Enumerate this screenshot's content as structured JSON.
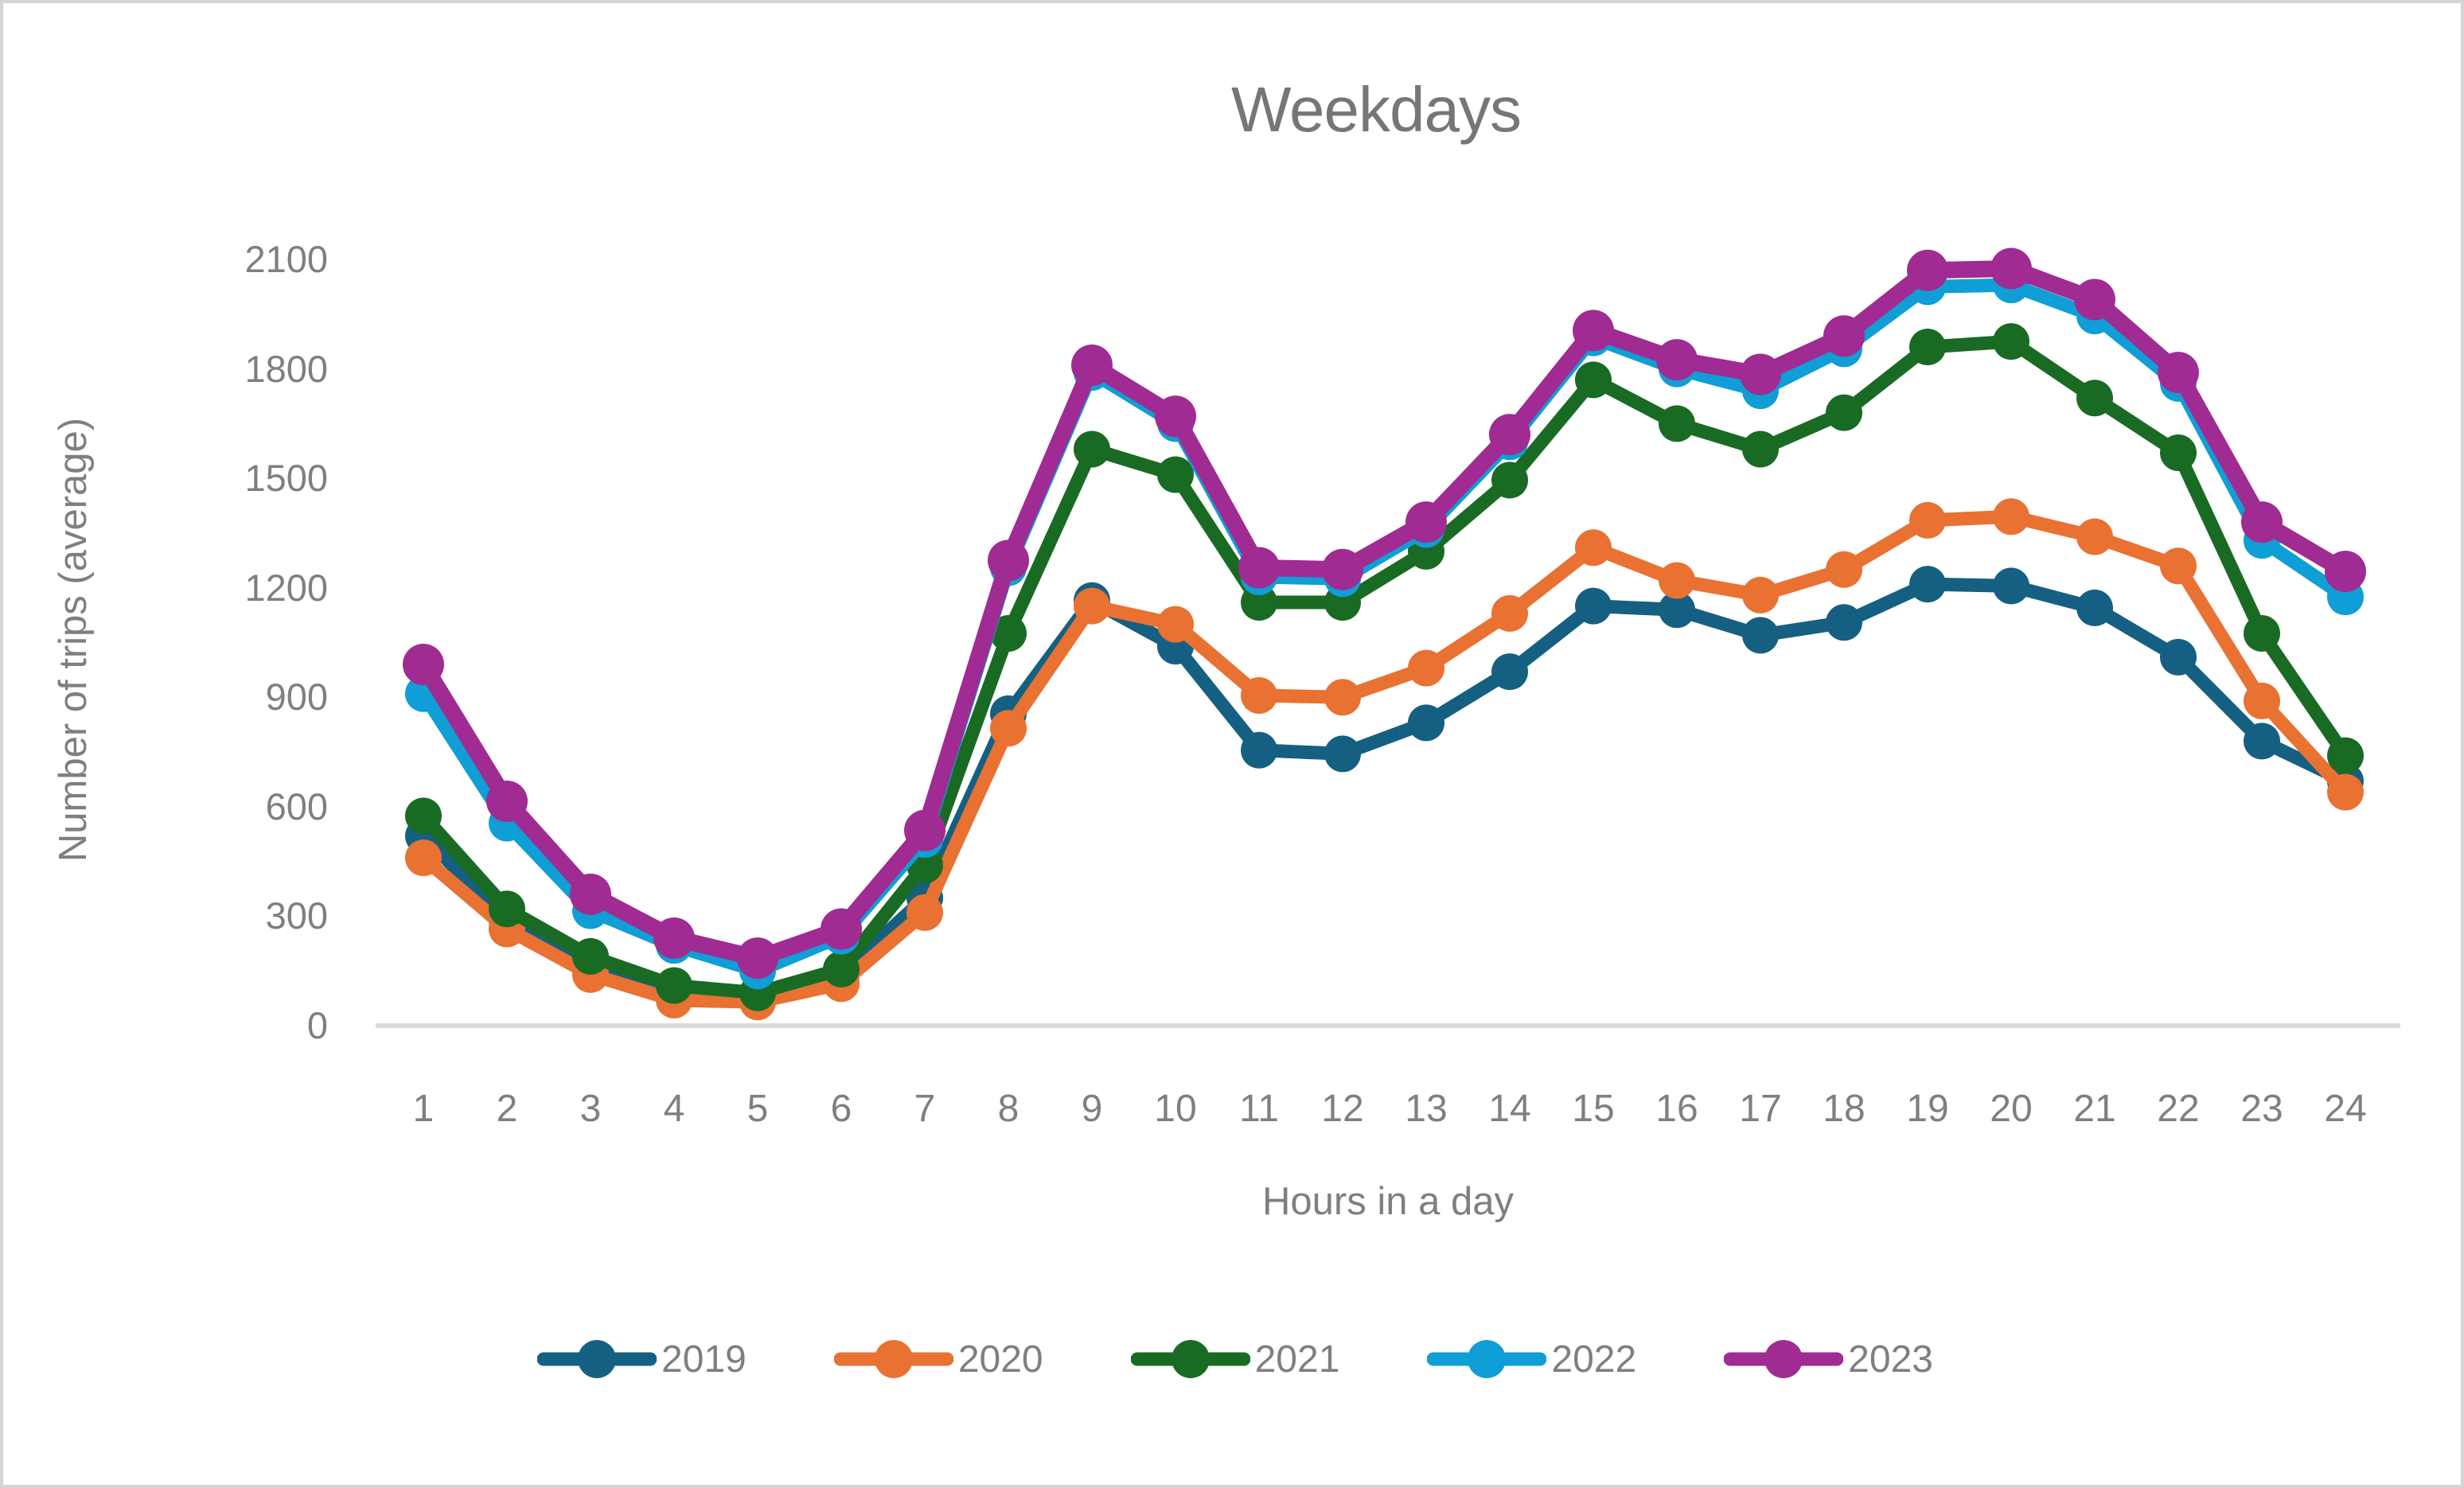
{
  "colors": {
    "text_gray": "#7f7f7f",
    "title_gray": "#767676",
    "axis_line": "#d9d9d9",
    "frame_border": "#d6d6d6",
    "series_2019": "#156082",
    "series_2020": "#E97132",
    "series_2021": "#196B24",
    "series_2022": "#0F9ED5",
    "series_2023": "#A02B93"
  },
  "chart_data": {
    "type": "line",
    "title": "Weekdays",
    "xlabel": "Hours in a day",
    "ylabel": "Number of trips (average)",
    "x": [
      1,
      2,
      3,
      4,
      5,
      6,
      7,
      8,
      9,
      10,
      11,
      12,
      13,
      14,
      15,
      16,
      17,
      18,
      19,
      20,
      21,
      22,
      23,
      24
    ],
    "ylim": [
      0,
      2100
    ],
    "yticks": [
      0,
      300,
      600,
      900,
      1200,
      1500,
      1800,
      2100
    ],
    "grid": false,
    "legend_position": "bottom",
    "marker": "circle",
    "series": [
      {
        "name": "2019",
        "color": "#156082",
        "values": [
          520,
          290,
          165,
          90,
          75,
          140,
          350,
          855,
          1165,
          1040,
          755,
          745,
          830,
          970,
          1150,
          1140,
          1070,
          1105,
          1210,
          1205,
          1145,
          1010,
          780,
          670
        ]
      },
      {
        "name": "2020",
        "color": "#E97132",
        "values": [
          460,
          265,
          140,
          70,
          65,
          115,
          310,
          815,
          1150,
          1100,
          905,
          900,
          980,
          1130,
          1310,
          1220,
          1180,
          1250,
          1385,
          1395,
          1340,
          1260,
          890,
          640
        ]
      },
      {
        "name": "2021",
        "color": "#196B24",
        "values": [
          575,
          320,
          190,
          110,
          90,
          155,
          440,
          1075,
          1580,
          1510,
          1160,
          1160,
          1300,
          1495,
          1770,
          1650,
          1580,
          1680,
          1860,
          1875,
          1720,
          1570,
          1075,
          740
        ]
      },
      {
        "name": "2022",
        "color": "#0F9ED5",
        "values": [
          910,
          555,
          315,
          220,
          150,
          245,
          510,
          1255,
          1790,
          1650,
          1230,
          1225,
          1360,
          1600,
          1885,
          1800,
          1740,
          1855,
          2025,
          2030,
          1945,
          1760,
          1330,
          1175
        ]
      },
      {
        "name": "2023",
        "color": "#A02B93",
        "values": [
          990,
          615,
          360,
          240,
          185,
          265,
          535,
          1275,
          1810,
          1670,
          1255,
          1250,
          1380,
          1620,
          1905,
          1825,
          1785,
          1890,
          2070,
          2075,
          1990,
          1790,
          1380,
          1245
        ]
      }
    ]
  }
}
